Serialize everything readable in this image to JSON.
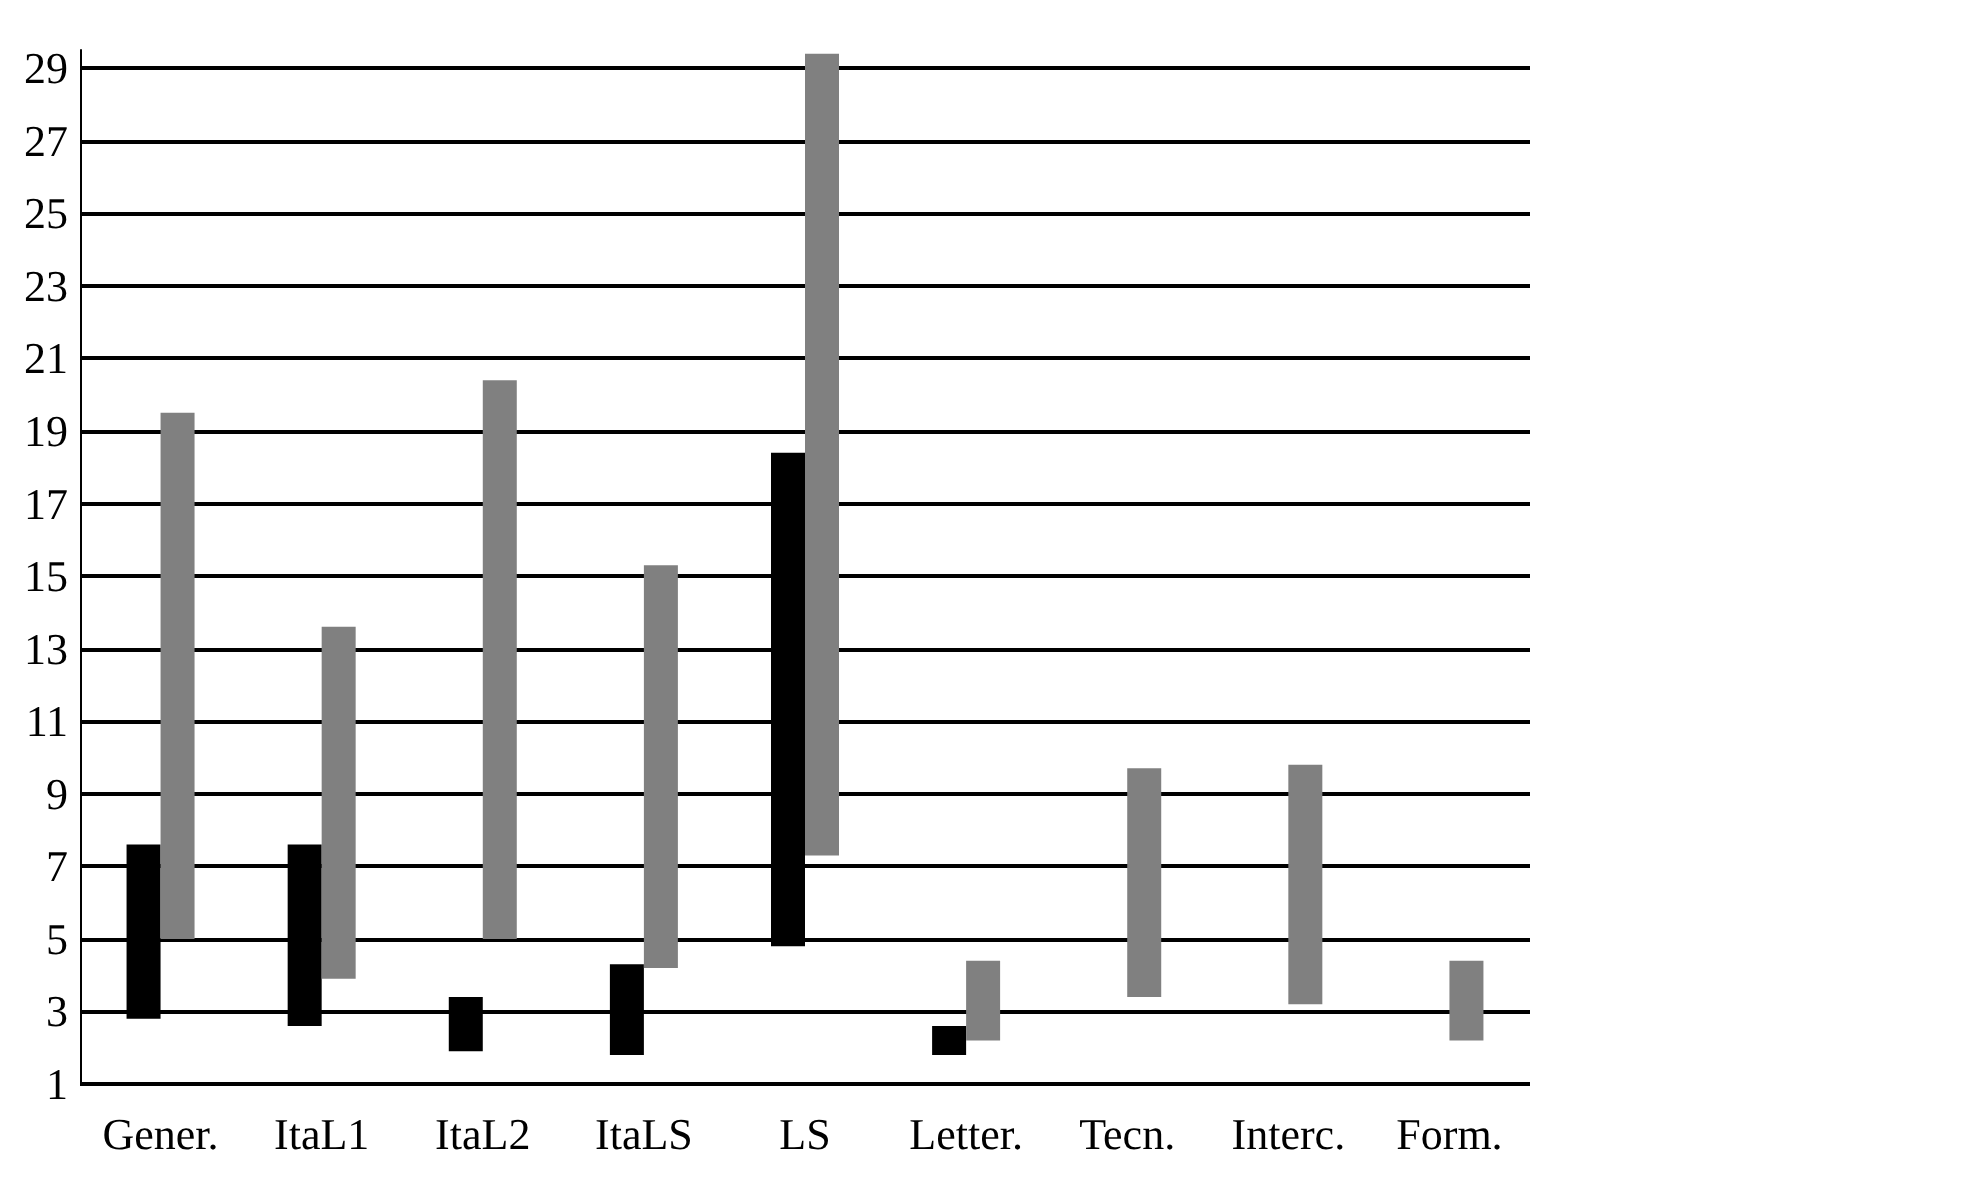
{
  "chart_data": {
    "type": "bar",
    "categories": [
      "Gener.",
      "ItaL1",
      "ItaL2",
      "ItaLS",
      "LS",
      "Letter.",
      "Tecn.",
      "Interc.",
      "Form."
    ],
    "series": [
      {
        "color": "#000000",
        "base": [
          2.8,
          2.6,
          1.9,
          1.8,
          4.8,
          1.8,
          null,
          null,
          null
        ],
        "values": [
          4.8,
          5.0,
          1.5,
          2.5,
          13.6,
          0.8,
          null,
          null,
          null
        ]
      },
      {
        "color": "#808080",
        "base": [
          5.0,
          3.9,
          5.0,
          4.2,
          7.3,
          2.2,
          3.4,
          3.2,
          2.2
        ],
        "values": [
          14.5,
          9.7,
          15.4,
          11.1,
          22.1,
          2.2,
          6.3,
          6.6,
          2.2
        ]
      }
    ],
    "ylim": [
      1,
      29.5
    ],
    "yticks": [
      1,
      3,
      5,
      7,
      9,
      11,
      13,
      15,
      17,
      19,
      21,
      23,
      25,
      27,
      29
    ],
    "grid": "y"
  }
}
